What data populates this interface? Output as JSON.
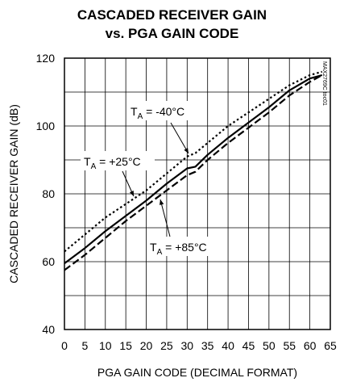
{
  "chart_data": {
    "type": "line",
    "title": "CASCADED RECEIVER GAIN",
    "subtitle": "vs. PGA GAIN CODE",
    "xlabel": "PGA GAIN CODE (DECIMAL FORMAT)",
    "ylabel": "CASCADED RECEIVER GAIN (dB)",
    "xlim": [
      0,
      65
    ],
    "ylim": [
      40,
      120
    ],
    "x_ticks": [
      "0",
      "5",
      "10",
      "15",
      "20",
      "25",
      "30",
      "35",
      "40",
      "45",
      "50",
      "55",
      "60",
      "65"
    ],
    "y_ticks": [
      "40",
      "60",
      "80",
      "100",
      "120"
    ],
    "grid": true,
    "watermark": "MAX2769C toc01",
    "series": [
      {
        "name": "TA = -40°C",
        "label_main": "T",
        "label_sub": "A",
        "label_rest": " = -40°C",
        "style": "dotted",
        "x": [
          0,
          5,
          10,
          15,
          20,
          25,
          30,
          32,
          35,
          40,
          45,
          50,
          55,
          60,
          63
        ],
        "y": [
          63,
          68,
          73,
          77,
          81,
          86,
          91,
          92,
          95,
          100,
          104,
          108,
          112,
          115,
          116
        ]
      },
      {
        "name": "TA = +25°C",
        "label_main": "T",
        "label_sub": "A",
        "label_rest": " = +25°C",
        "style": "solid",
        "x": [
          0,
          5,
          10,
          15,
          20,
          25,
          30,
          32,
          35,
          40,
          45,
          50,
          55,
          60,
          63
        ],
        "y": [
          59.5,
          64,
          69,
          73.5,
          78,
          83,
          87.5,
          88,
          91.5,
          96.5,
          101,
          105.5,
          110.5,
          114,
          115
        ]
      },
      {
        "name": "TA = +85°C",
        "label_main": "T",
        "label_sub": "A",
        "label_rest": " = +85°C",
        "style": "dashed",
        "x": [
          0,
          5,
          10,
          15,
          20,
          25,
          30,
          32,
          35,
          40,
          45,
          50,
          55,
          60,
          63
        ],
        "y": [
          57.5,
          62,
          67,
          72,
          76.5,
          81,
          85.5,
          86.5,
          90,
          95,
          99.5,
          104,
          109,
          113,
          115
        ]
      }
    ]
  }
}
